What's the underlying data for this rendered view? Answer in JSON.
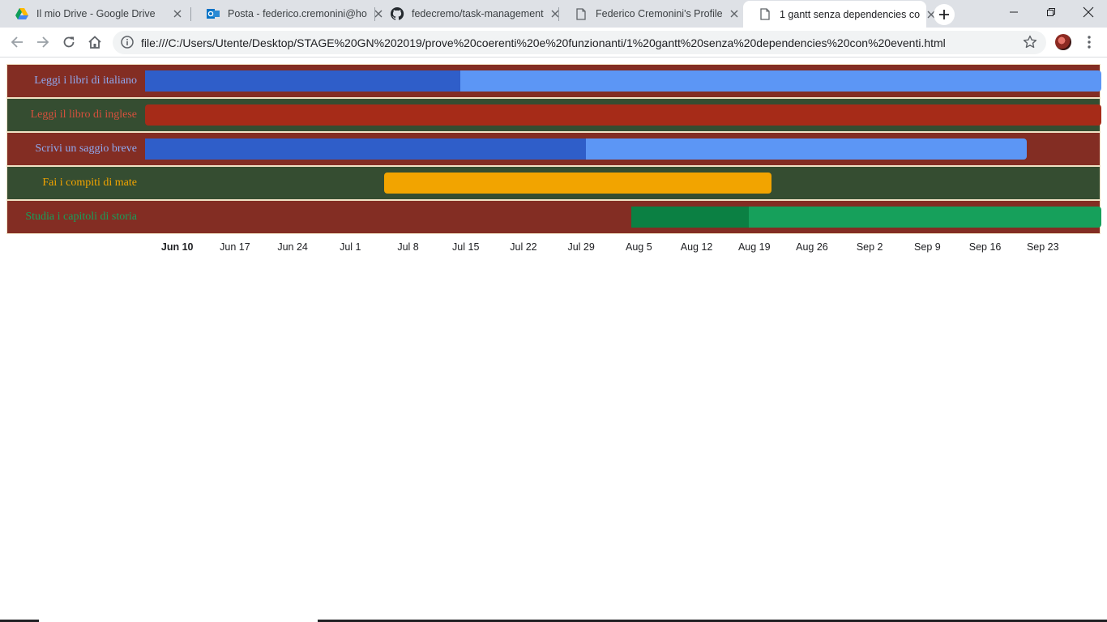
{
  "browser": {
    "tabs": [
      {
        "title": "Il mio Drive - Google Drive",
        "icon": "google-drive-icon",
        "active": false
      },
      {
        "title": "Posta - federico.cremonini@ho",
        "icon": "outlook-icon",
        "active": false
      },
      {
        "title": "fedecremo/task-management",
        "icon": "github-icon",
        "active": false
      },
      {
        "title": "Federico Cremonini's Profile",
        "icon": "document-icon",
        "active": false
      },
      {
        "title": "1 gantt senza dependencies co",
        "icon": "document-icon",
        "active": true
      }
    ],
    "url": "file:///C:/Users/Utente/Desktop/STAGE%20GN%202019/prove%20coerenti%20e%20funzionanti/1%20gantt%20senza%20dependencies%20con%20eventi.html"
  },
  "colors": {
    "row_odd": "#832d23",
    "row_even": "#354d31",
    "blue_done": "#2f5ec9",
    "blue_todo": "#5c96f5",
    "red_bar": "#a62b18",
    "yellow_bar": "#f2a400",
    "green_done": "#0b8043",
    "green_todo": "#16a05b"
  },
  "chart_data": {
    "type": "gantt",
    "tasks": [
      {
        "label": "Leggi i libri di italiano",
        "label_color": "#8fa9f0",
        "start": "2019-06-06",
        "end": "2019-09-30",
        "percent_done": 33,
        "color": "#5c96f5",
        "done_color": "#2f5ec9"
      },
      {
        "label": "Leggi il libro di inglese",
        "label_color": "#d6503d",
        "start": "2019-06-06",
        "end": "2019-09-30",
        "percent_done": 0,
        "color": "#a62b18",
        "done_color": "#a62b18"
      },
      {
        "label": "Scrivi un saggio breve",
        "label_color": "#8fa9f0",
        "start": "2019-06-06",
        "end": "2019-09-21",
        "percent_done": 50,
        "color": "#5c96f5",
        "done_color": "#2f5ec9"
      },
      {
        "label": "Fai i compiti di mate",
        "label_color": "#f2a400",
        "start": "2019-07-05",
        "end": "2019-08-21",
        "percent_done": 0,
        "color": "#f2a400",
        "done_color": "#f2a400"
      },
      {
        "label": "Studia i capitoli di storia",
        "label_color": "#16a05b",
        "start": "2019-08-04",
        "end": "2019-09-30",
        "percent_done": 25,
        "color": "#16a05b",
        "done_color": "#0b8043"
      }
    ],
    "x_ticks": [
      "Jun 10",
      "Jun 17",
      "Jun 24",
      "Jul 1",
      "Jul 8",
      "Jul 15",
      "Jul 22",
      "Jul 29",
      "Aug 5",
      "Aug 12",
      "Aug 19",
      "Aug 26",
      "Sep 2",
      "Sep 9",
      "Sep 16",
      "Sep 23"
    ],
    "x_tick_dates": [
      "2019-06-10",
      "2019-06-17",
      "2019-06-24",
      "2019-07-01",
      "2019-07-08",
      "2019-07-15",
      "2019-07-22",
      "2019-07-29",
      "2019-08-05",
      "2019-08-12",
      "2019-08-19",
      "2019-08-26",
      "2019-09-02",
      "2019-09-09",
      "2019-09-16",
      "2019-09-23"
    ],
    "x_range": [
      "2019-06-06",
      "2019-09-30"
    ]
  }
}
